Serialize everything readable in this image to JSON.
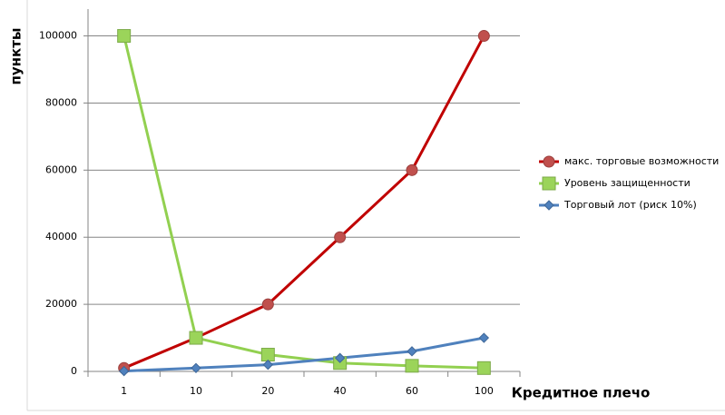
{
  "chart_data": {
    "type": "line",
    "y_label": "пункты",
    "x_label": "Кредитное плечо",
    "categories": [
      "1",
      "10",
      "20",
      "40",
      "60",
      "100"
    ],
    "series": [
      {
        "name": "макс. торговые возможности",
        "color": "#c0504d",
        "marker": "circle",
        "line_color": "#c00000",
        "values": [
          1000,
          10000,
          20000,
          40000,
          60000,
          100000
        ]
      },
      {
        "name": "Уровень защищенности",
        "color": "#9bd45a",
        "marker": "square",
        "line_color": "#92d050",
        "values": [
          100000,
          10000,
          5000,
          2500,
          1667,
          1000
        ]
      },
      {
        "name": "Торговый лот (риск 10%)",
        "color": "#4f81bd",
        "marker": "diamond",
        "line_color": "#4f81bd",
        "values": [
          100,
          1000,
          2000,
          4000,
          6000,
          10000
        ]
      }
    ],
    "ylim": [
      0,
      108000
    ],
    "yticks": [
      0,
      20000,
      40000,
      60000,
      80000,
      100000
    ],
    "grid": true,
    "legend": "right"
  }
}
